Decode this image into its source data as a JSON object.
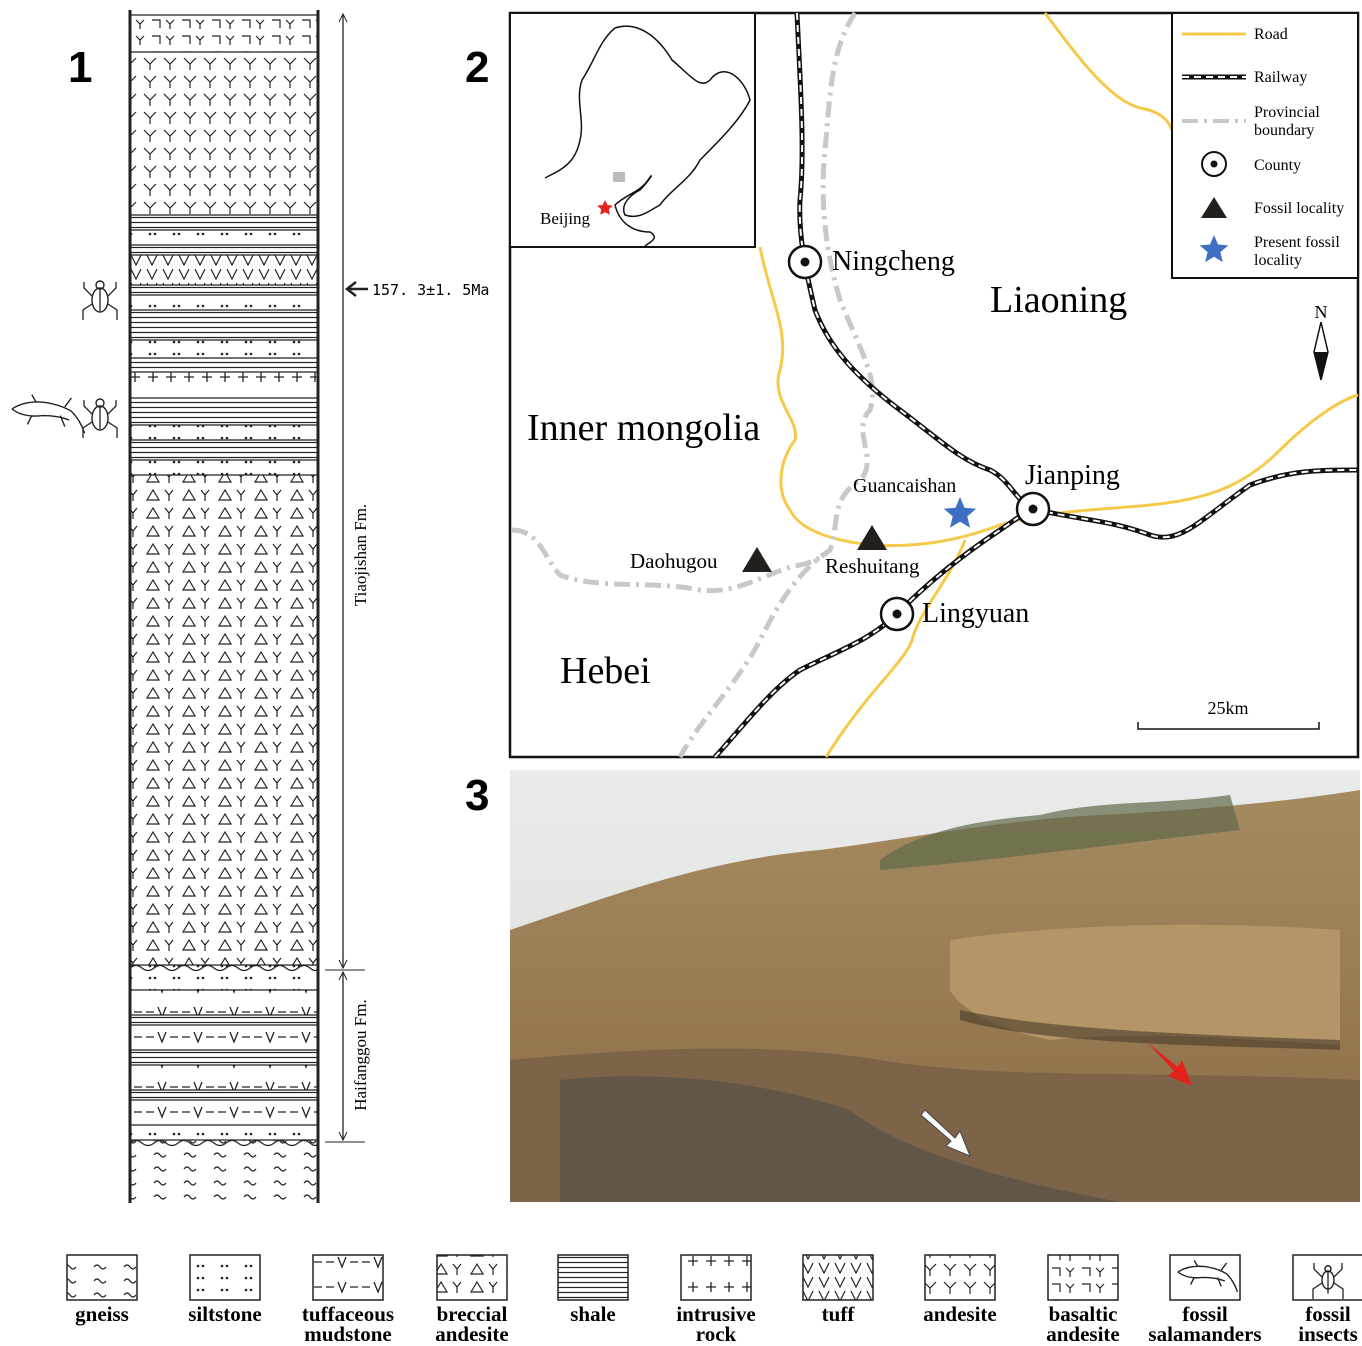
{
  "panels": {
    "column": "1",
    "map": "2",
    "photo": "3"
  },
  "column": {
    "age": "157. 3±1. 5Ma",
    "formations": [
      "Tiaojishan Fm.",
      "Haifanggou Fm."
    ]
  },
  "map": {
    "inset_label": "Beijing",
    "places": [
      "Ningcheng",
      "Liaoning",
      "Inner mongolia",
      "Guancaishan",
      "Jianping",
      "Daohugou",
      "Reshuitang",
      "Lingyuan",
      "Hebei"
    ],
    "scale": "25km",
    "north": "N",
    "legend": [
      [
        "Road"
      ],
      [
        "Railway"
      ],
      [
        "Provincial",
        "boundary"
      ],
      [
        "County"
      ],
      [
        "Fossil locality"
      ],
      [
        "Present fossil",
        "locality"
      ]
    ]
  },
  "lithology_legend": [
    [
      "gneiss"
    ],
    [
      "siltstone"
    ],
    [
      "tuffaceous",
      "mudstone"
    ],
    [
      "breccial",
      "andesite"
    ],
    [
      "shale"
    ],
    [
      "intrusive",
      "rock"
    ],
    [
      "tuff"
    ],
    [
      "andesite"
    ],
    [
      "basaltic",
      "andesite"
    ],
    [
      "fossil",
      "salamanders"
    ],
    [
      "fossil",
      "insects"
    ]
  ]
}
